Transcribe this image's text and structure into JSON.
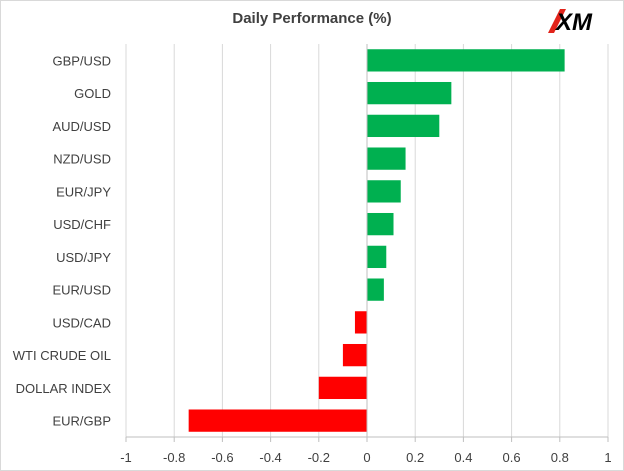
{
  "chart_data": {
    "type": "bar",
    "orientation": "horizontal",
    "title": "Daily Performance (%)",
    "categories": [
      "GBP/USD",
      "GOLD",
      "AUD/USD",
      "NZD/USD",
      "EUR/JPY",
      "USD/CHF",
      "USD/JPY",
      "EUR/USD",
      "USD/CAD",
      "WTI CRUDE OIL",
      "DOLLAR INDEX",
      "EUR/GBP"
    ],
    "values": [
      0.82,
      0.35,
      0.3,
      0.16,
      0.14,
      0.11,
      0.08,
      0.07,
      -0.05,
      -0.1,
      -0.2,
      -0.74
    ],
    "xlim": [
      -1,
      1
    ],
    "x_ticks": [
      -1,
      -0.8,
      -0.6,
      -0.4,
      -0.2,
      0,
      0.2,
      0.4,
      0.6,
      0.8,
      1
    ],
    "x_tick_labels": [
      "-1",
      "-0.8",
      "-0.6",
      "-0.4",
      "-0.2",
      "0",
      "0.2",
      "0.4",
      "0.6",
      "0.8",
      "1"
    ],
    "grid": "vertical",
    "legend": "none",
    "colors": {
      "positive": "#00b050",
      "negative": "#ff0000",
      "grid": "#d9d9d9",
      "axis": "#bfbfbf",
      "text": "#404040"
    }
  },
  "logo": {
    "text": "XM",
    "color": "#e2231a",
    "text_color": "#000000"
  }
}
